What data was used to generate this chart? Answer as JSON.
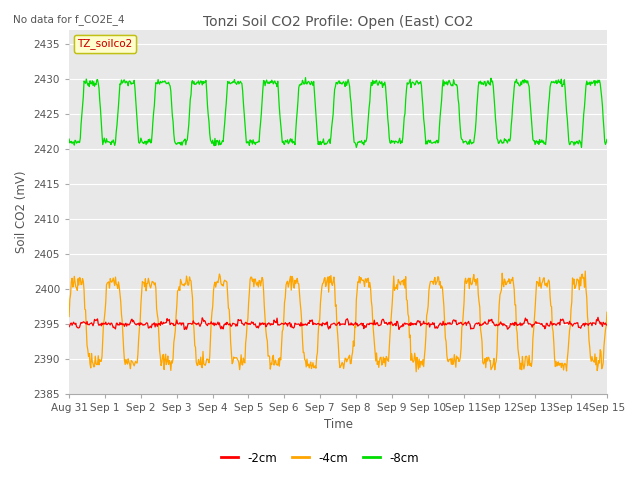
{
  "title": "Tonzi Soil CO2 Profile: Open (East) CO2",
  "subtitle": "No data for f_CO2E_4",
  "ylabel": "Soil CO2 (mV)",
  "xlabel": "Time",
  "ylim": [
    2385,
    2437
  ],
  "yticks": [
    2385,
    2390,
    2395,
    2400,
    2405,
    2410,
    2415,
    2420,
    2425,
    2430,
    2435
  ],
  "xtick_labels": [
    "Aug 31",
    "Sep 1",
    "Sep 2",
    "Sep 3",
    "Sep 4",
    "Sep 5",
    "Sep 6",
    "Sep 7",
    "Sep 8",
    "Sep 9",
    "Sep 10",
    "Sep 11",
    "Sep 12",
    "Sep 13",
    "Sep 14",
    "Sep 15"
  ],
  "color_2cm": "#ff0000",
  "color_4cm": "#ffa500",
  "color_8cm": "#00dd00",
  "legend_label_2cm": "-2cm",
  "legend_label_4cm": "-4cm",
  "legend_label_8cm": "-8cm",
  "legend_box_label": "TZ_soilco2",
  "bg_color": "#e8e8e8",
  "grid_color": "#ffffff",
  "label_color": "#555555",
  "days": 15
}
